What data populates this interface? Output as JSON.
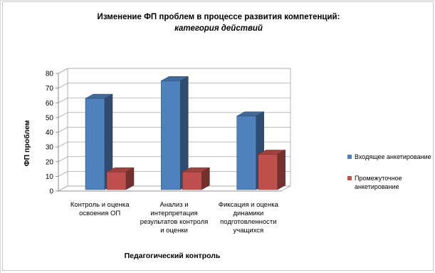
{
  "chart_data": {
    "type": "bar",
    "title": "Изменение ФП проблем  в процессе развития компетенций:",
    "subtitle": "категория действий",
    "xlabel": "Педагогический контроль",
    "ylabel": "ФП проблем",
    "ylim": [
      0,
      80
    ],
    "yticks": [
      0,
      10,
      20,
      30,
      40,
      50,
      60,
      70,
      80
    ],
    "categories": [
      [
        "Контроль и оценка",
        "освоения ОП"
      ],
      [
        "Анализ и",
        "интерпретация",
        "результатов контроля",
        "и оценки"
      ],
      [
        "Фиксация и оценка",
        "динамики",
        "подготовленности",
        "учащихся"
      ]
    ],
    "series": [
      {
        "name_lines": [
          "Входящее анкетирование"
        ],
        "color": "#4F81BD",
        "values": [
          63,
          75,
          51
        ]
      },
      {
        "name_lines": [
          "Промежуточное",
          "анкетирование"
        ],
        "color": "#C0504D",
        "values": [
          13,
          13,
          25
        ]
      }
    ],
    "grid": true,
    "legend_position": "right",
    "style": "3d-clustered-column"
  }
}
